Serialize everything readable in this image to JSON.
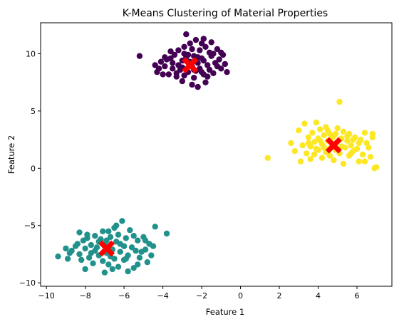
{
  "chart_data": {
    "type": "scatter",
    "title": "K-Means Clustering of Material Properties",
    "xlabel": "Feature 1",
    "ylabel": "Feature 2",
    "xlim": [
      -10.3,
      7.8
    ],
    "ylim": [
      -10.3,
      12.7
    ],
    "xticks": [
      -10,
      -8,
      -6,
      -4,
      -2,
      0,
      2,
      4,
      6
    ],
    "yticks": [
      -10,
      -5,
      0,
      5,
      10
    ],
    "grid": false,
    "legend": "none",
    "series": [
      {
        "color": "#440154",
        "points": [
          [
            -5.2,
            9.8
          ],
          [
            -4.4,
            9.0
          ],
          [
            -4.2,
            8.7
          ],
          [
            -4.3,
            8.4
          ],
          [
            -4.1,
            9.3
          ],
          [
            -3.9,
            8.9
          ],
          [
            -3.8,
            9.5
          ],
          [
            -3.7,
            8.2
          ],
          [
            -3.6,
            9.6
          ],
          [
            -3.5,
            8.7
          ],
          [
            -3.4,
            9.9
          ],
          [
            -3.3,
            8.0
          ],
          [
            -3.2,
            9.0
          ],
          [
            -3.2,
            10.3
          ],
          [
            -3.1,
            8.6
          ],
          [
            -3.0,
            7.6
          ],
          [
            -3.0,
            9.4
          ],
          [
            -2.9,
            10.0
          ],
          [
            -2.9,
            8.1
          ],
          [
            -2.8,
            9.7
          ],
          [
            -2.8,
            11.7
          ],
          [
            -2.7,
            8.4
          ],
          [
            -2.6,
            10.9
          ],
          [
            -2.6,
            9.3
          ],
          [
            -2.5,
            8.9
          ],
          [
            -2.5,
            10.4
          ],
          [
            -2.4,
            7.9
          ],
          [
            -2.4,
            9.8
          ],
          [
            -2.3,
            8.5
          ],
          [
            -2.3,
            11.2
          ],
          [
            -2.2,
            9.2
          ],
          [
            -2.2,
            7.1
          ],
          [
            -2.1,
            10.3
          ],
          [
            -2.1,
            8.7
          ],
          [
            -2.0,
            9.6
          ],
          [
            -2.0,
            10.9
          ],
          [
            -1.9,
            8.2
          ],
          [
            -1.9,
            9.4
          ],
          [
            -1.8,
            10.6
          ],
          [
            -1.8,
            7.5
          ],
          [
            -1.7,
            9.0
          ],
          [
            -1.6,
            10.1
          ],
          [
            -1.6,
            8.6
          ],
          [
            -1.5,
            9.8
          ],
          [
            -1.5,
            11.0
          ],
          [
            -1.4,
            8.3
          ],
          [
            -1.3,
            9.2
          ],
          [
            -1.2,
            10.4
          ],
          [
            -1.1,
            9.5
          ],
          [
            -1.0,
            8.7
          ],
          [
            -0.9,
            9.9
          ],
          [
            -0.8,
            9.1
          ],
          [
            -0.7,
            8.4
          ],
          [
            -3.9,
            9.7
          ],
          [
            -3.5,
            9.2
          ],
          [
            -3.3,
            8.3
          ],
          [
            -3.0,
            8.8
          ],
          [
            -2.7,
            9.9
          ],
          [
            -2.4,
            8.6
          ],
          [
            -2.2,
            9.7
          ],
          [
            -2.0,
            8.4
          ],
          [
            -1.7,
            8.0
          ],
          [
            -1.4,
            10.0
          ],
          [
            -1.2,
            8.9
          ],
          [
            -2.9,
            10.6
          ],
          [
            -3.6,
            10.2
          ],
          [
            -4.0,
            8.2
          ],
          [
            -1.0,
            10.1
          ],
          [
            -2.5,
            7.3
          ],
          [
            -1.9,
            11.3
          ]
        ]
      },
      {
        "color": "#21918c",
        "points": [
          [
            -9.4,
            -7.7
          ],
          [
            -9.0,
            -7.0
          ],
          [
            -8.9,
            -7.9
          ],
          [
            -8.7,
            -7.2
          ],
          [
            -8.5,
            -6.8
          ],
          [
            -8.3,
            -5.6
          ],
          [
            -8.3,
            -7.5
          ],
          [
            -8.1,
            -6.3
          ],
          [
            -8.0,
            -8.8
          ],
          [
            -8.0,
            -7.0
          ],
          [
            -7.9,
            -6.1
          ],
          [
            -7.8,
            -7.8
          ],
          [
            -7.7,
            -6.7
          ],
          [
            -7.6,
            -8.3
          ],
          [
            -7.5,
            -7.2
          ],
          [
            -7.5,
            -5.9
          ],
          [
            -7.4,
            -6.9
          ],
          [
            -7.3,
            -7.6
          ],
          [
            -7.2,
            -6.2
          ],
          [
            -7.1,
            -8.1
          ],
          [
            -7.0,
            -6.6
          ],
          [
            -7.0,
            -9.1
          ],
          [
            -6.9,
            -7.4
          ],
          [
            -6.8,
            -5.5
          ],
          [
            -6.8,
            -8.4
          ],
          [
            -6.7,
            -6.0
          ],
          [
            -6.6,
            -7.1
          ],
          [
            -6.5,
            -5.2
          ],
          [
            -6.5,
            -7.9
          ],
          [
            -6.4,
            -6.4
          ],
          [
            -6.3,
            -8.6
          ],
          [
            -6.3,
            -5.8
          ],
          [
            -6.2,
            -7.3
          ],
          [
            -6.1,
            -4.6
          ],
          [
            -6.0,
            -6.8
          ],
          [
            -6.0,
            -8.0
          ],
          [
            -5.9,
            -6.1
          ],
          [
            -5.8,
            -7.6
          ],
          [
            -5.8,
            -9.0
          ],
          [
            -5.7,
            -5.4
          ],
          [
            -5.6,
            -6.9
          ],
          [
            -5.5,
            -8.7
          ],
          [
            -5.4,
            -7.2
          ],
          [
            -5.3,
            -6.3
          ],
          [
            -5.2,
            -7.8
          ],
          [
            -5.0,
            -6.0
          ],
          [
            -4.9,
            -7.1
          ],
          [
            -4.8,
            -8.2
          ],
          [
            -4.7,
            -6.6
          ],
          [
            -4.5,
            -6.8
          ],
          [
            -4.4,
            -5.1
          ],
          [
            -3.8,
            -5.7
          ],
          [
            -8.8,
            -7.4
          ],
          [
            -8.4,
            -6.6
          ],
          [
            -7.7,
            -7.4
          ],
          [
            -7.3,
            -6.4
          ],
          [
            -6.9,
            -6.3
          ],
          [
            -6.6,
            -8.8
          ],
          [
            -6.2,
            -6.6
          ],
          [
            -5.9,
            -7.9
          ],
          [
            -5.5,
            -5.9
          ],
          [
            -5.1,
            -7.3
          ],
          [
            -4.9,
            -6.3
          ],
          [
            -7.9,
            -5.8
          ],
          [
            -8.2,
            -8.0
          ],
          [
            -6.4,
            -5.0
          ],
          [
            -5.3,
            -8.4
          ],
          [
            -4.6,
            -7.6
          ],
          [
            -7.1,
            -5.5
          ],
          [
            -6.7,
            -7.7
          ]
        ]
      },
      {
        "color": "#fde725",
        "points": [
          [
            1.4,
            0.9
          ],
          [
            2.6,
            2.2
          ],
          [
            2.8,
            1.5
          ],
          [
            3.0,
            3.3
          ],
          [
            3.1,
            0.6
          ],
          [
            3.2,
            2.0
          ],
          [
            3.3,
            3.9
          ],
          [
            3.4,
            1.3
          ],
          [
            3.5,
            2.7
          ],
          [
            3.6,
            0.8
          ],
          [
            3.6,
            1.9
          ],
          [
            3.7,
            3.1
          ],
          [
            3.8,
            2.3
          ],
          [
            3.8,
            1.2
          ],
          [
            3.9,
            4.0
          ],
          [
            4.0,
            2.6
          ],
          [
            4.0,
            1.6
          ],
          [
            4.1,
            3.4
          ],
          [
            4.2,
            0.9
          ],
          [
            4.2,
            2.1
          ],
          [
            4.3,
            2.9
          ],
          [
            4.4,
            1.4
          ],
          [
            4.4,
            3.6
          ],
          [
            4.5,
            2.4
          ],
          [
            4.6,
            1.1
          ],
          [
            4.6,
            3.0
          ],
          [
            4.7,
            2.0
          ],
          [
            4.8,
            0.7
          ],
          [
            4.8,
            2.8
          ],
          [
            4.9,
            1.6
          ],
          [
            5.0,
            3.5
          ],
          [
            5.0,
            2.3
          ],
          [
            5.1,
            5.8
          ],
          [
            5.1,
            1.3
          ],
          [
            5.2,
            2.6
          ],
          [
            5.3,
            0.4
          ],
          [
            5.3,
            3.2
          ],
          [
            5.4,
            1.8
          ],
          [
            5.5,
            2.4
          ],
          [
            5.6,
            1.1
          ],
          [
            5.6,
            3.0
          ],
          [
            5.7,
            2.0
          ],
          [
            5.8,
            1.5
          ],
          [
            5.9,
            2.7
          ],
          [
            6.0,
            1.7
          ],
          [
            6.1,
            0.6
          ],
          [
            6.2,
            2.5
          ],
          [
            6.3,
            1.2
          ],
          [
            6.4,
            3.1
          ],
          [
            6.5,
            2.2
          ],
          [
            6.6,
            1.8
          ],
          [
            6.7,
            1.0
          ],
          [
            6.8,
            2.7
          ],
          [
            6.8,
            3.0
          ],
          [
            6.9,
            0.0
          ],
          [
            7.0,
            0.1
          ],
          [
            4.1,
            2.4
          ],
          [
            4.7,
            2.6
          ],
          [
            5.2,
            1.9
          ],
          [
            4.3,
            1.8
          ],
          [
            5.5,
            2.8
          ],
          [
            3.9,
            1.7
          ],
          [
            4.9,
            3.0
          ],
          [
            5.8,
            2.5
          ],
          [
            6.1,
            2.2
          ],
          [
            4.5,
            3.3
          ],
          [
            5.7,
            1.3
          ],
          [
            3.5,
            2.2
          ],
          [
            6.4,
            0.6
          ],
          [
            4.6,
            1.7
          ]
        ]
      }
    ],
    "centroids": {
      "color": "#ff0000",
      "points": [
        [
          -2.6,
          9.0
        ],
        [
          -6.9,
          -7.0
        ],
        [
          4.8,
          2.0
        ]
      ]
    }
  }
}
